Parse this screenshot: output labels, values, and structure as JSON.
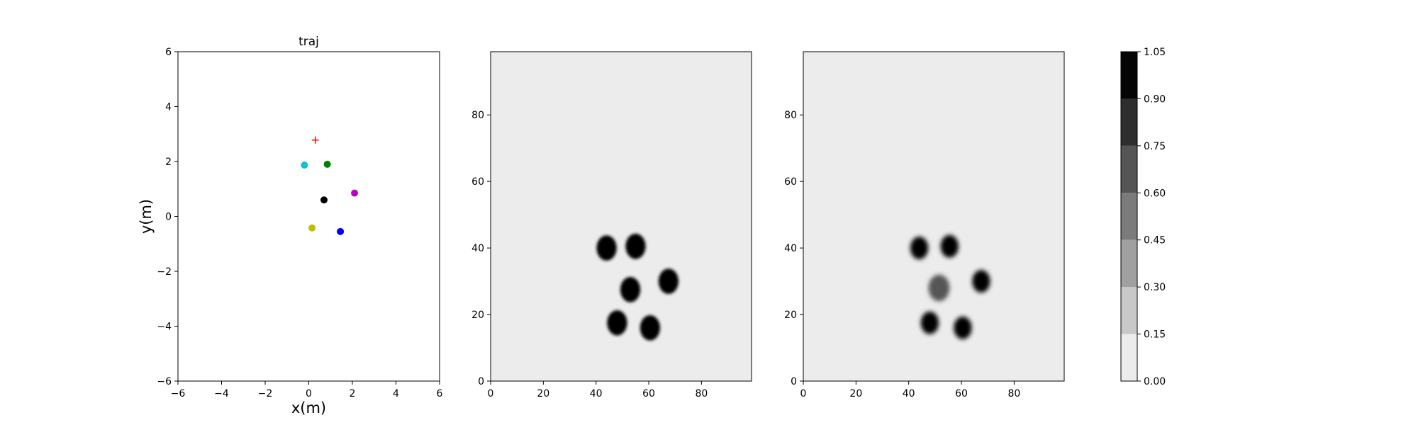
{
  "chart_data": [
    {
      "type": "scatter",
      "title": "traj",
      "xlabel": "x(m)",
      "ylabel": "y(m)",
      "xlim": [
        -6,
        6
      ],
      "ylim": [
        -6,
        6
      ],
      "xticks": [
        -6,
        -4,
        -2,
        0,
        2,
        4,
        6
      ],
      "yticks": [
        -6,
        -4,
        -2,
        0,
        2,
        4,
        6
      ],
      "tick_labels_x": [
        "−6",
        "−4",
        "−2",
        "0",
        "2",
        "4",
        "6"
      ],
      "tick_labels_y": [
        "−6",
        "−4",
        "−2",
        "0",
        "2",
        "4",
        "6"
      ],
      "grid": false,
      "points": [
        {
          "x": -0.2,
          "y": 1.87,
          "color": "#17becf",
          "marker": "circle"
        },
        {
          "x": 0.85,
          "y": 1.9,
          "color": "#008000",
          "marker": "circle"
        },
        {
          "x": 2.1,
          "y": 0.85,
          "color": "#bf00bf",
          "marker": "circle"
        },
        {
          "x": 0.7,
          "y": 0.6,
          "color": "#000000",
          "marker": "circle"
        },
        {
          "x": 0.15,
          "y": -0.42,
          "color": "#bfbf00",
          "marker": "circle"
        },
        {
          "x": 1.45,
          "y": -0.55,
          "color": "#0000ff",
          "marker": "circle"
        }
      ],
      "target": {
        "x": 0.3,
        "y": 2.78,
        "color": "#ff0000",
        "marker": "plus"
      }
    },
    {
      "type": "heatmap",
      "title": "",
      "xlim": [
        0,
        99
      ],
      "ylim": [
        0,
        99
      ],
      "xticks": [
        0,
        20,
        40,
        60,
        80
      ],
      "yticks": [
        0,
        20,
        40,
        60,
        80
      ],
      "tick_labels_x": [
        "0",
        "20",
        "40",
        "60",
        "80"
      ],
      "tick_labels_y": [
        "0",
        "20",
        "40",
        "60",
        "80"
      ],
      "background_value": 0.05,
      "blobs": [
        {
          "x": 44,
          "y": 40,
          "r": 3.8,
          "value": 1.0
        },
        {
          "x": 55,
          "y": 40.5,
          "r": 3.8,
          "value": 1.0
        },
        {
          "x": 67.5,
          "y": 30,
          "r": 3.8,
          "value": 1.0
        },
        {
          "x": 53,
          "y": 27.5,
          "r": 3.8,
          "value": 1.0
        },
        {
          "x": 48,
          "y": 17.5,
          "r": 3.8,
          "value": 1.0
        },
        {
          "x": 60.5,
          "y": 16,
          "r": 3.8,
          "value": 1.0
        }
      ]
    },
    {
      "type": "heatmap",
      "title": "",
      "xlim": [
        0,
        99
      ],
      "ylim": [
        0,
        99
      ],
      "xticks": [
        0,
        20,
        40,
        60,
        80
      ],
      "yticks": [
        0,
        20,
        40,
        60,
        80
      ],
      "tick_labels_x": [
        "0",
        "20",
        "40",
        "60",
        "80"
      ],
      "tick_labels_y": [
        "0",
        "20",
        "40",
        "60",
        "80"
      ],
      "background_value": 0.05,
      "blobs": [
        {
          "x": 44,
          "y": 40,
          "r": 3.4,
          "value": 1.0
        },
        {
          "x": 55.5,
          "y": 40.5,
          "r": 3.4,
          "value": 1.0
        },
        {
          "x": 67.5,
          "y": 30,
          "r": 3.4,
          "value": 1.0
        },
        {
          "x": 51.5,
          "y": 28,
          "r": 4.0,
          "value": 0.6
        },
        {
          "x": 48,
          "y": 17.5,
          "r": 3.4,
          "value": 1.0
        },
        {
          "x": 60.5,
          "y": 16,
          "r": 3.4,
          "value": 1.0
        }
      ]
    }
  ],
  "colorbar": {
    "levels": [
      0.0,
      0.15,
      0.3,
      0.45,
      0.6,
      0.75,
      0.9,
      1.05
    ],
    "tick_labels": [
      "0.00",
      "0.15",
      "0.30",
      "0.45",
      "0.60",
      "0.75",
      "0.90",
      "1.05"
    ],
    "colors": [
      "#ececec",
      "#c8c8c8",
      "#a0a0a0",
      "#7b7b7b",
      "#555555",
      "#2e2e2e",
      "#050505"
    ]
  }
}
